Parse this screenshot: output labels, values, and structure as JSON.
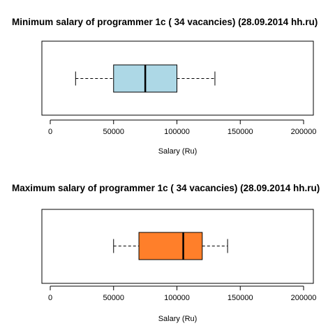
{
  "chart_data": [
    {
      "type": "boxplot",
      "orientation": "horizontal",
      "title": "Minimum salary of programmer  1c ( 34  vacancies)  (28.09.2014 hh.ru)",
      "xlabel": "Salary (Ru)",
      "xlim": [
        0,
        200000
      ],
      "xticks": [
        0,
        50000,
        100000,
        150000,
        200000
      ],
      "tick_labels": [
        "0",
        "50000",
        "100000",
        "150000",
        "200000"
      ],
      "stats": {
        "whisker_low": 20000,
        "q1": 50000,
        "median": 75000,
        "q3": 100000,
        "whisker_high": 130000
      },
      "box_color": "#add8e6"
    },
    {
      "type": "boxplot",
      "orientation": "horizontal",
      "title": "Maximum salary of programmer  1c ( 34  vacancies)  (28.09.2014 hh.ru)",
      "xlabel": "Salary (Ru)",
      "xlim": [
        0,
        200000
      ],
      "xticks": [
        0,
        50000,
        100000,
        150000,
        200000
      ],
      "tick_labels": [
        "0",
        "50000",
        "100000",
        "150000",
        "200000"
      ],
      "stats": {
        "whisker_low": 50000,
        "q1": 70000,
        "median": 105000,
        "q3": 120000,
        "whisker_high": 140000
      },
      "box_color": "#ff7f2a"
    }
  ]
}
